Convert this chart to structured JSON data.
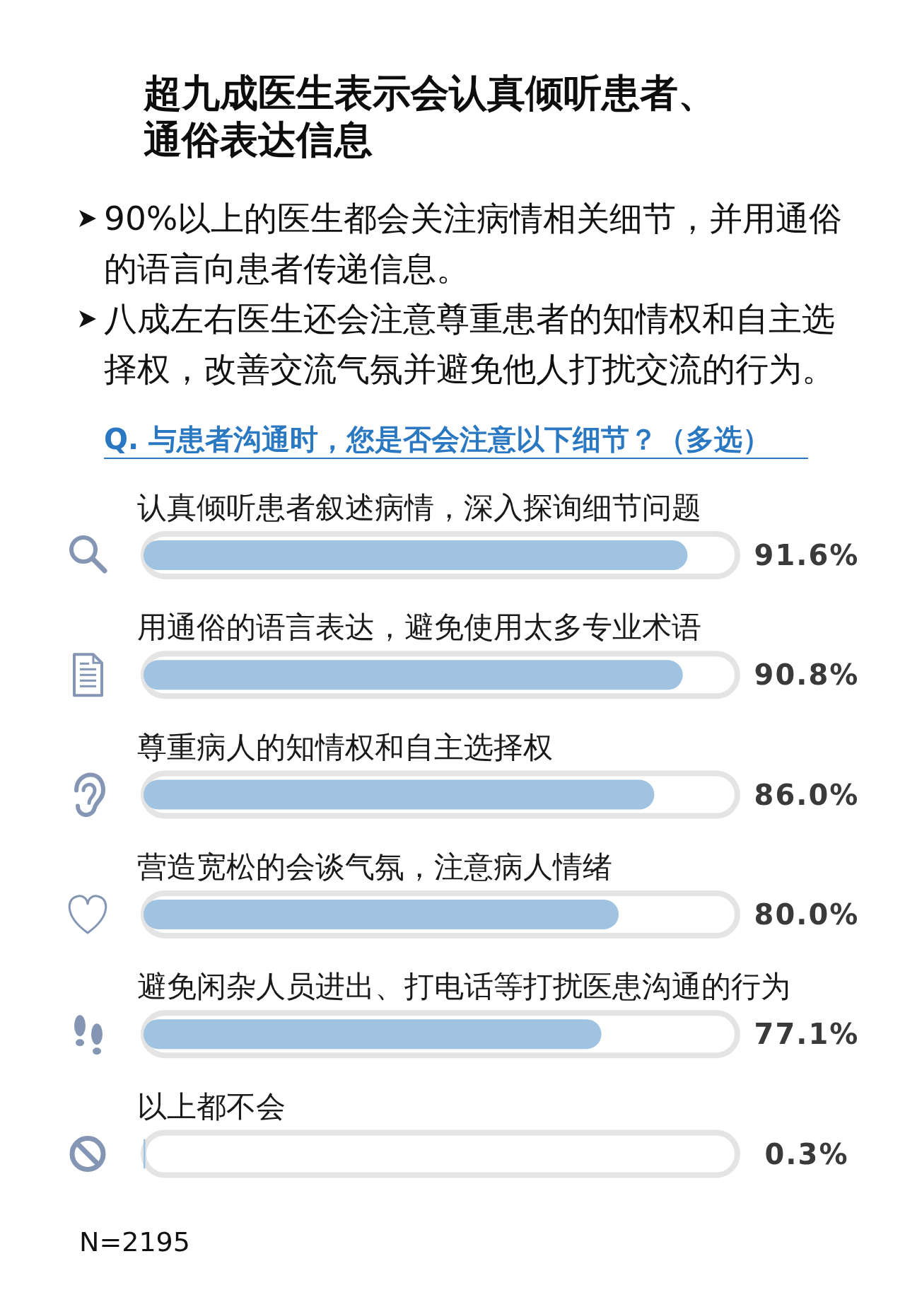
{
  "chart_data": {
    "type": "bar",
    "orientation": "horizontal",
    "title": "超九成医生表示会认真倾听患者、通俗表达信息",
    "subtitle": "Q. 与患者沟通时，您是否会注意以下细节？（多选）",
    "annotations": [
      "90%以上的医生都会关注病情相关细节，并用通俗的语言向患者传递信息。",
      "八成左右医生还会注意尊重患者的知情权和自主选择权，改善交流气氛并避免他人打扰交流的行为。",
      "N=2195"
    ],
    "categories": [
      "认真倾听患者叙述病情，深入探询细节问题",
      "用通俗的语言表达，避免使用太多专业术语",
      "尊重病人的知情权和自主选择权",
      "营造宽松的会谈气氛，注意病人情绪",
      "避免闲杂人员进出、打电话等打扰医患沟通的行为",
      "以上都不会"
    ],
    "series": [
      {
        "color": "#e4e4e4",
        "values": [
          100,
          100,
          100,
          100,
          100,
          100
        ]
      },
      {
        "color": "#9fc3e1",
        "values": [
          91.6,
          90.8,
          86.0,
          80.0,
          77.1,
          0.3
        ],
        "value_labels": [
          "91.6%",
          "90.8%",
          "86.0%",
          "80.0%",
          "77.1%",
          "0.3%"
        ]
      }
    ]
  }
}
